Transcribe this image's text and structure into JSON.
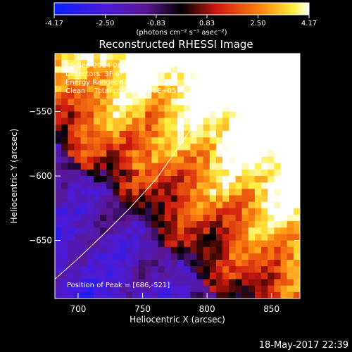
{
  "colors": {
    "background": "#000000",
    "foreground": "#ffffff"
  },
  "colorbar": {
    "ticks": [
      "-4.17",
      "-2.50",
      "-0.83",
      "0.83",
      "2.50",
      "4.17"
    ],
    "range": [
      -4.17,
      4.17
    ],
    "unit_label": "(photons cm⁻² s⁻¹ asec⁻²)",
    "colormap": "blue-purple-black-red-orange-yellow-white"
  },
  "chart_data": {
    "type": "heatmap",
    "title": "Reconstructed RHESSI Image",
    "xlabel": "Heliocentric X (arcsec)",
    "ylabel": "Heliocentric Y (arcsec)",
    "xlim": [
      682,
      872
    ],
    "ylim": [
      -695,
      -505
    ],
    "x_ticks": [
      700,
      750,
      800,
      850
    ],
    "y_ticks": [
      -550,
      -600,
      -650
    ],
    "grid": false,
    "annotations": [
      "26-Sep-2014 06:12:04.000 to 06:22:04.000",
      "Detectors: 3F 6F 9F, Att 1",
      "Energy Range: 6.0 - 12.0 keV",
      "Clean    Total counts: 8.36E+05"
    ],
    "peak_label": "Position of Peak = [686,-521]",
    "peak": [
      686,
      -521
    ],
    "limb_curve": [
      [
        682,
        -680
      ],
      [
        700,
        -664
      ],
      [
        720,
        -645
      ],
      [
        740,
        -625
      ],
      [
        760,
        -603
      ],
      [
        775,
        -582
      ],
      [
        790,
        -560
      ],
      [
        803,
        -535
      ],
      [
        813,
        -505
      ]
    ]
  },
  "footer": {
    "timestamp": "18-May-2017 22:39"
  }
}
